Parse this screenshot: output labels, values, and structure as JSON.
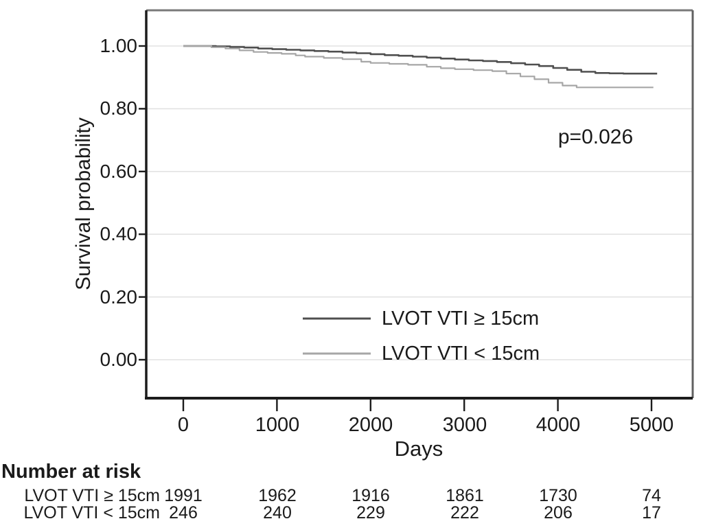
{
  "figure": {
    "p_value_label": "p=0.026",
    "x_axis": {
      "label": "Days",
      "ticks": [
        "0",
        "1000",
        "2000",
        "3000",
        "4000",
        "5000"
      ]
    },
    "y_axis": {
      "label": "Survival probability",
      "ticks": [
        "1.00",
        "0.80",
        "0.60",
        "0.40",
        "0.20",
        "0.00"
      ]
    },
    "legend": [
      {
        "label": "LVOT VTI ≥ 15cm",
        "color": "#4f4f4f"
      },
      {
        "label": "LVOT VTI < 15cm",
        "color": "#a6a6a6"
      }
    ],
    "risk_table": {
      "title": "Number at risk",
      "rows": [
        {
          "label": "LVOT VTI ≥ 15cm",
          "values": [
            "1991",
            "1962",
            "1916",
            "1861",
            "1730",
            "74"
          ]
        },
        {
          "label": "LVOT VTI < 15cm",
          "values": [
            "246",
            "240",
            "229",
            "222",
            "206",
            "17"
          ]
        }
      ]
    },
    "colors": {
      "axis": "#1c1c1c",
      "frame_top": "#7a7a7a",
      "frame_right": "#606060",
      "gridline": "#e2e2e2",
      "text": "#1a1a1a"
    }
  },
  "chart_data": {
    "type": "line",
    "subtype": "kaplan-meier-step",
    "title": "",
    "xlabel": "Days",
    "ylabel": "Survival probability",
    "xlim": [
      0,
      5440
    ],
    "ylim": [
      0,
      1.0
    ],
    "x_ticks": [
      0,
      1000,
      2000,
      3000,
      4000,
      5000
    ],
    "y_ticks": [
      1.0,
      0.8,
      0.6,
      0.4,
      0.2,
      0.0
    ],
    "grid": true,
    "legend_position": "inside-bottom-center",
    "annotations": [
      {
        "text": "p=0.026",
        "x": 4400,
        "y": 0.71
      }
    ],
    "series": [
      {
        "name": "LVOT VTI ≥ 15cm",
        "color": "#4f4f4f",
        "stroke_width": 2.6,
        "points": [
          [
            0,
            1.0
          ],
          [
            350,
            0.999
          ],
          [
            500,
            0.997
          ],
          [
            650,
            0.995
          ],
          [
            800,
            0.992
          ],
          [
            950,
            0.99
          ],
          [
            1100,
            0.988
          ],
          [
            1250,
            0.986
          ],
          [
            1400,
            0.984
          ],
          [
            1550,
            0.982
          ],
          [
            1700,
            0.979
          ],
          [
            1850,
            0.977
          ],
          [
            2000,
            0.974
          ],
          [
            2150,
            0.971
          ],
          [
            2300,
            0.969
          ],
          [
            2450,
            0.966
          ],
          [
            2600,
            0.963
          ],
          [
            2750,
            0.96
          ],
          [
            2900,
            0.957
          ],
          [
            3050,
            0.954
          ],
          [
            3200,
            0.952
          ],
          [
            3350,
            0.949
          ],
          [
            3500,
            0.945
          ],
          [
            3650,
            0.941
          ],
          [
            3800,
            0.936
          ],
          [
            3950,
            0.93
          ],
          [
            4100,
            0.924
          ],
          [
            4250,
            0.918
          ],
          [
            4400,
            0.914
          ],
          [
            4550,
            0.913
          ],
          [
            4700,
            0.912
          ],
          [
            5060,
            0.912
          ]
        ]
      },
      {
        "name": "LVOT VTI < 15cm",
        "color": "#a6a6a6",
        "stroke_width": 2.2,
        "points": [
          [
            0,
            1.0
          ],
          [
            300,
            0.996
          ],
          [
            450,
            0.992
          ],
          [
            600,
            0.986
          ],
          [
            750,
            0.981
          ],
          [
            900,
            0.978
          ],
          [
            1050,
            0.975
          ],
          [
            1200,
            0.97
          ],
          [
            1300,
            0.966
          ],
          [
            1500,
            0.962
          ],
          [
            1700,
            0.958
          ],
          [
            1900,
            0.95
          ],
          [
            2000,
            0.946
          ],
          [
            2200,
            0.943
          ],
          [
            2400,
            0.94
          ],
          [
            2600,
            0.934
          ],
          [
            2750,
            0.929
          ],
          [
            2900,
            0.926
          ],
          [
            3100,
            0.923
          ],
          [
            3300,
            0.92
          ],
          [
            3450,
            0.912
          ],
          [
            3600,
            0.903
          ],
          [
            3750,
            0.894
          ],
          [
            3900,
            0.883
          ],
          [
            4050,
            0.874
          ],
          [
            4200,
            0.868
          ],
          [
            5020,
            0.868
          ]
        ]
      }
    ],
    "number_at_risk": {
      "title": "Number at risk",
      "times": [
        0,
        1000,
        2000,
        3000,
        4000,
        5000
      ],
      "groups": [
        {
          "name": "LVOT VTI ≥ 15cm",
          "counts": [
            1991,
            1962,
            1916,
            1861,
            1730,
            74
          ]
        },
        {
          "name": "LVOT VTI < 15cm",
          "counts": [
            246,
            240,
            229,
            222,
            206,
            17
          ]
        }
      ]
    }
  }
}
